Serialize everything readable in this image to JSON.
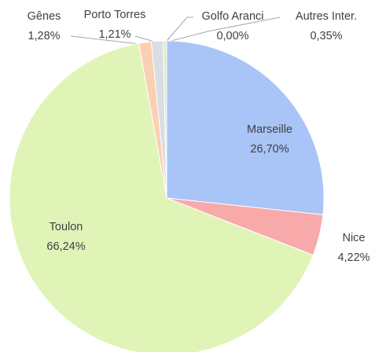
{
  "chart_data": {
    "type": "pie",
    "categories": [
      "Marseille",
      "Nice",
      "Toulon",
      "Gênes",
      "Porto Torres",
      "Golfo Aranci",
      "Autres Inter."
    ],
    "values": [
      26.7,
      4.22,
      66.24,
      1.28,
      1.21,
      0.0,
      0.35
    ],
    "value_labels": [
      "26,70%",
      "4,22%",
      "66,24%",
      "1,28%",
      "1,21%",
      "0,00%",
      "0,35%"
    ],
    "colors": [
      "#a9c4f6",
      "#f8a9a9",
      "#e0f4b8",
      "#fad0b2",
      "#d9dde4",
      "#c9d6ea",
      "#dcecc0"
    ]
  }
}
